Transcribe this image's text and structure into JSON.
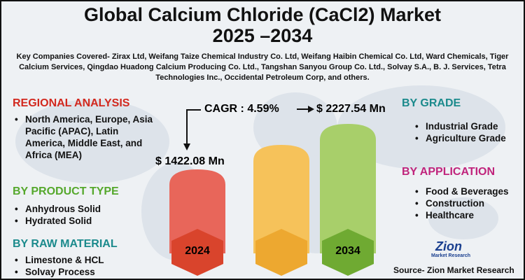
{
  "header": {
    "title_line1": "Global Calcium Chloride (CaCl2) Market",
    "title_line2": "2025 –2034",
    "companies": "Key Companies Covered- Zirax Ltd, Weifang Taize Chemical Industry Co. Ltd, Weifang Haibin Chemical Co. Ltd, Ward Chemicals, Tiger Calcium Services, Qingdao Huadong Calcium Producing Co. Ltd., Tangshan Sanyou Group Co. Ltd., Solvay S.A., B. J. Services, Tetra Technologies Inc., Occidental Petroleum Corp, and others."
  },
  "regional": {
    "heading": "REGIONAL ANALYSIS",
    "items": [
      "North America, Europe, Asia Pacific (APAC), Latin America, Middle East, and Africa (MEA)"
    ]
  },
  "product_type": {
    "heading": "BY PRODUCT TYPE",
    "items": [
      "Anhydrous Solid",
      "Hydrated Solid"
    ]
  },
  "raw_material": {
    "heading": "BY RAW MATERIAL",
    "items": [
      "Limestone & HCL",
      "Solvay Process"
    ]
  },
  "grade": {
    "heading": "BY GRADE",
    "items": [
      "Industrial Grade",
      "Agriculture Grade"
    ]
  },
  "application": {
    "heading": "BY APPLICATION",
    "items": [
      "Food & Beverages",
      "Construction",
      "Healthcare"
    ]
  },
  "center": {
    "cagr": "CAGR : 4.59%",
    "value_2034": "$ 2227.54 Mn",
    "value_2024": "$ 1422.08 Mn",
    "year_start": "2024",
    "year_end": "2034"
  },
  "footer": {
    "logo_top": "Zion",
    "logo_bottom": "Market Research",
    "source": "Source- Zion Market Research"
  }
}
